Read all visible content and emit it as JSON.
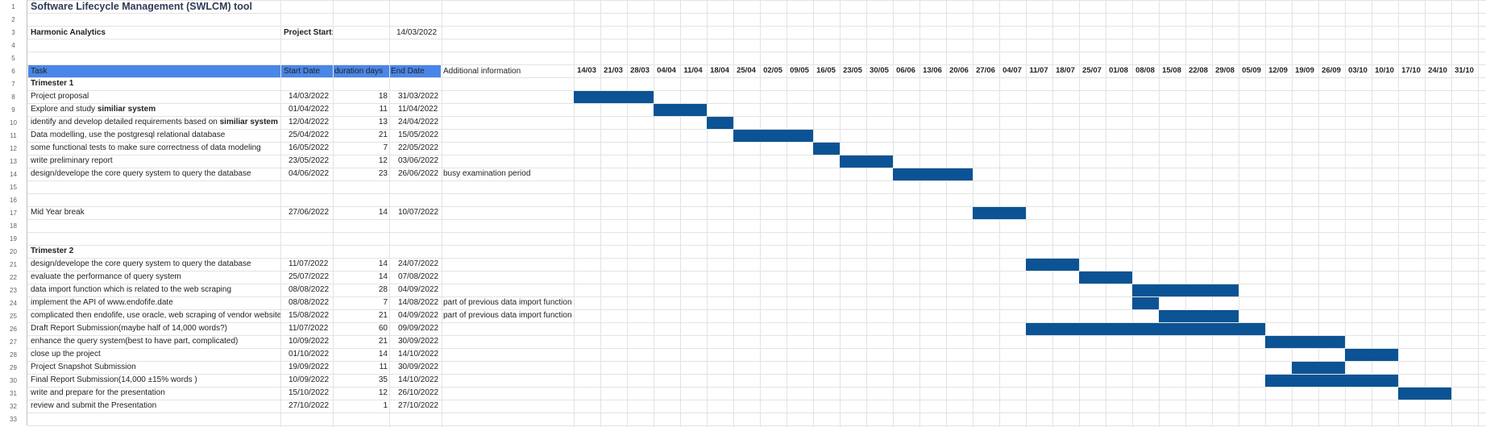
{
  "sheet": {
    "title": "Software Lifecycle Management (SWLCM) tool",
    "company": "Harmonic Analytics",
    "project_start_label": "Project Start:",
    "project_start_value": "14/03/2022",
    "row_numbers": [
      "1",
      "2",
      "3",
      "4",
      "5",
      "6",
      "7",
      "8",
      "9",
      "10",
      "11",
      "12",
      "13",
      "14",
      "15",
      "16",
      "17",
      "18",
      "19",
      "20",
      "21",
      "22",
      "23",
      "24",
      "25",
      "26",
      "27",
      "28",
      "29",
      "30",
      "31",
      "32",
      "33"
    ]
  },
  "columns": {
    "task": "Task",
    "start": "Start Date",
    "duration": "duration days",
    "end": "End Date",
    "info": "Additional information"
  },
  "weeks": [
    "14/03",
    "21/03",
    "28/03",
    "04/04",
    "11/04",
    "18/04",
    "25/04",
    "02/05",
    "09/05",
    "16/05",
    "23/05",
    "30/05",
    "06/06",
    "13/06",
    "20/06",
    "27/06",
    "04/07",
    "11/07",
    "18/07",
    "25/07",
    "01/08",
    "08/08",
    "15/08",
    "22/08",
    "29/08",
    "05/09",
    "12/09",
    "19/09",
    "26/09",
    "03/10",
    "10/10",
    "17/10",
    "24/10",
    "31/10"
  ],
  "tasks": [
    {
      "row": 7,
      "task": "Trimester 1",
      "section": true
    },
    {
      "row": 8,
      "task": "Project proposal",
      "start": "14/03/2022",
      "duration": "18",
      "end": "31/03/2022",
      "bar_start": 0,
      "bar_days": 18
    },
    {
      "row": 9,
      "task_a": "Explore and study ",
      "task_b": "similiar system",
      "start": "01/04/2022",
      "duration": "11",
      "end": "11/04/2022",
      "bar_start": 18,
      "bar_days": 12
    },
    {
      "row": 10,
      "task_a": "identify and develop detailed requirements based on ",
      "task_b": "similiar system",
      "start": "12/04/2022",
      "duration": "13",
      "end": "24/04/2022",
      "bar_start": 30,
      "bar_days": 6
    },
    {
      "row": 11,
      "task": "Data modelling, use the postgresql relational database",
      "start": "25/04/2022",
      "duration": "21",
      "end": "15/05/2022",
      "bar_start": 36,
      "bar_days": 18
    },
    {
      "row": 12,
      "task": "some functional tests to make sure correctness of data modeling",
      "start": "16/05/2022",
      "duration": "7",
      "end": "22/05/2022",
      "bar_start": 54,
      "bar_days": 6
    },
    {
      "row": 13,
      "task": "write preliminary report",
      "start": "23/05/2022",
      "duration": "12",
      "end": "03/06/2022",
      "bar_start": 60,
      "bar_days": 12
    },
    {
      "row": 14,
      "task": "design/develope the core query system to query the database",
      "start": "04/06/2022",
      "duration": "23",
      "end": "26/06/2022",
      "info": "busy examination period",
      "bar_start": 72,
      "bar_days": 18
    },
    {
      "row": 17,
      "task": "Mid Year break",
      "start": "27/06/2022",
      "duration": "14",
      "end": "10/07/2022",
      "bar_start": 90,
      "bar_days": 12
    },
    {
      "row": 20,
      "task": "Trimester 2",
      "section": true
    },
    {
      "row": 21,
      "task": "design/develope the core query system to query the database",
      "start": "11/07/2022",
      "duration": "14",
      "end": "24/07/2022",
      "bar_start": 102,
      "bar_days": 12
    },
    {
      "row": 22,
      "task": "evaluate the performance of query system",
      "start": "25/07/2022",
      "duration": "14",
      "end": "07/08/2022",
      "bar_start": 114,
      "bar_days": 12
    },
    {
      "row": 23,
      "task": "data import function which is related to the web scraping",
      "start": "08/08/2022",
      "duration": "28",
      "end": "04/09/2022",
      "bar_start": 126,
      "bar_days": 24
    },
    {
      "row": 24,
      "task": "implement the API of www.endofife.date",
      "start": "08/08/2022",
      "duration": "7",
      "end": "14/08/2022",
      "info": "part of previous data import function",
      "bar_start": 126,
      "bar_days": 6
    },
    {
      "row": 25,
      "task": "complicated then endofife, use oracle, web scraping of vendor website",
      "start": "15/08/2022",
      "duration": "21",
      "end": "04/09/2022",
      "info": "part of previous data import function",
      "bar_start": 132,
      "bar_days": 18
    },
    {
      "row": 26,
      "task": "Draft Report Submission(maybe half of 14,000 words?)",
      "start": "11/07/2022",
      "duration": "60",
      "end": "09/09/2022",
      "bar_start": 102,
      "bar_days": 54
    },
    {
      "row": 27,
      "task": "enhance the query system(best to have part, complicated)",
      "start": "10/09/2022",
      "duration": "21",
      "end": "30/09/2022",
      "bar_start": 156,
      "bar_days": 18
    },
    {
      "row": 28,
      "task": "close up the project",
      "start": "01/10/2022",
      "duration": "14",
      "end": "14/10/2022",
      "bar_start": 174,
      "bar_days": 12
    },
    {
      "row": 29,
      "task": "Project Snapshot Submission",
      "start": "19/09/2022",
      "duration": "11",
      "end": "30/09/2022",
      "bar_start": 162,
      "bar_days": 12
    },
    {
      "row": 30,
      "task": "Final Report Submission(14,000 ±15% words )",
      "start": "10/09/2022",
      "duration": "35",
      "end": "14/10/2022",
      "bar_start": 156,
      "bar_days": 30
    },
    {
      "row": 31,
      "task": "write and prepare for the presentation",
      "start": "15/10/2022",
      "duration": "12",
      "end": "26/10/2022",
      "bar_start": 186,
      "bar_days": 12
    },
    {
      "row": 32,
      "task": "review and submit the Presentation",
      "start": "27/10/2022",
      "duration": "1",
      "end": "27/10/2022"
    }
  ],
  "colors": {
    "header_blue": "#4a86e8",
    "bar_blue": "#0b5394",
    "title": "#2f3b56"
  }
}
